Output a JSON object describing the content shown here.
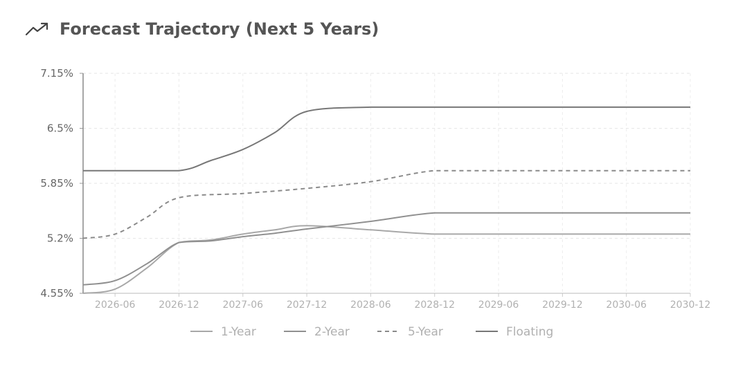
{
  "header": {
    "title": "Forecast Trajectory (Next 5 Years)",
    "icon": "trending-up-icon"
  },
  "chart_data": {
    "type": "line",
    "title": "Forecast Trajectory (Next 5 Years)",
    "xlabel": "",
    "ylabel": "",
    "x_ticks": [
      "2026-06",
      "2026-12",
      "2027-06",
      "2027-12",
      "2028-06",
      "2028-12",
      "2029-06",
      "2029-12",
      "2030-06",
      "2030-12"
    ],
    "y_ticks": [
      "4.55%",
      "5.2%",
      "5.85%",
      "6.5%",
      "7.15%"
    ],
    "ylim": [
      4.55,
      7.15
    ],
    "xlim": [
      "2026-03",
      "2030-12"
    ],
    "grid": true,
    "legend_position": "bottom",
    "series": [
      {
        "name": "1-Year",
        "color": "#a8a8a8",
        "dash": "solid",
        "points": [
          [
            "2026-03",
            4.55
          ],
          [
            "2026-06",
            4.6
          ],
          [
            "2026-09",
            4.85
          ],
          [
            "2026-12",
            5.15
          ],
          [
            "2027-03",
            5.18
          ],
          [
            "2027-06",
            5.25
          ],
          [
            "2027-09",
            5.3
          ],
          [
            "2027-12",
            5.35
          ],
          [
            "2028-06",
            5.3
          ],
          [
            "2028-12",
            5.25
          ],
          [
            "2029-06",
            5.25
          ],
          [
            "2029-12",
            5.25
          ],
          [
            "2030-06",
            5.25
          ],
          [
            "2030-12",
            5.25
          ]
        ]
      },
      {
        "name": "2-Year",
        "color": "#909090",
        "dash": "solid",
        "points": [
          [
            "2026-03",
            4.65
          ],
          [
            "2026-06",
            4.7
          ],
          [
            "2026-09",
            4.9
          ],
          [
            "2026-12",
            5.15
          ],
          [
            "2027-03",
            5.17
          ],
          [
            "2027-06",
            5.22
          ],
          [
            "2027-09",
            5.26
          ],
          [
            "2027-12",
            5.31
          ],
          [
            "2028-06",
            5.4
          ],
          [
            "2028-12",
            5.5
          ],
          [
            "2029-06",
            5.5
          ],
          [
            "2029-12",
            5.5
          ],
          [
            "2030-06",
            5.5
          ],
          [
            "2030-12",
            5.5
          ]
        ]
      },
      {
        "name": "5-Year",
        "color": "#8a8a8a",
        "dash": "dashed",
        "points": [
          [
            "2026-03",
            5.2
          ],
          [
            "2026-06",
            5.25
          ],
          [
            "2026-09",
            5.45
          ],
          [
            "2026-12",
            5.68
          ],
          [
            "2027-06",
            5.73
          ],
          [
            "2027-12",
            5.79
          ],
          [
            "2028-06",
            5.87
          ],
          [
            "2028-12",
            6.0
          ],
          [
            "2029-06",
            6.0
          ],
          [
            "2029-12",
            6.0
          ],
          [
            "2030-06",
            6.0
          ],
          [
            "2030-12",
            6.0
          ]
        ]
      },
      {
        "name": "Floating",
        "color": "#777777",
        "dash": "solid",
        "points": [
          [
            "2026-03",
            6.0
          ],
          [
            "2026-06",
            6.0
          ],
          [
            "2026-12",
            6.0
          ],
          [
            "2027-03",
            6.12
          ],
          [
            "2027-06",
            6.25
          ],
          [
            "2027-09",
            6.45
          ],
          [
            "2027-12",
            6.7
          ],
          [
            "2028-06",
            6.75
          ],
          [
            "2028-12",
            6.75
          ],
          [
            "2029-06",
            6.75
          ],
          [
            "2029-12",
            6.75
          ],
          [
            "2030-06",
            6.75
          ],
          [
            "2030-12",
            6.75
          ]
        ]
      }
    ]
  }
}
